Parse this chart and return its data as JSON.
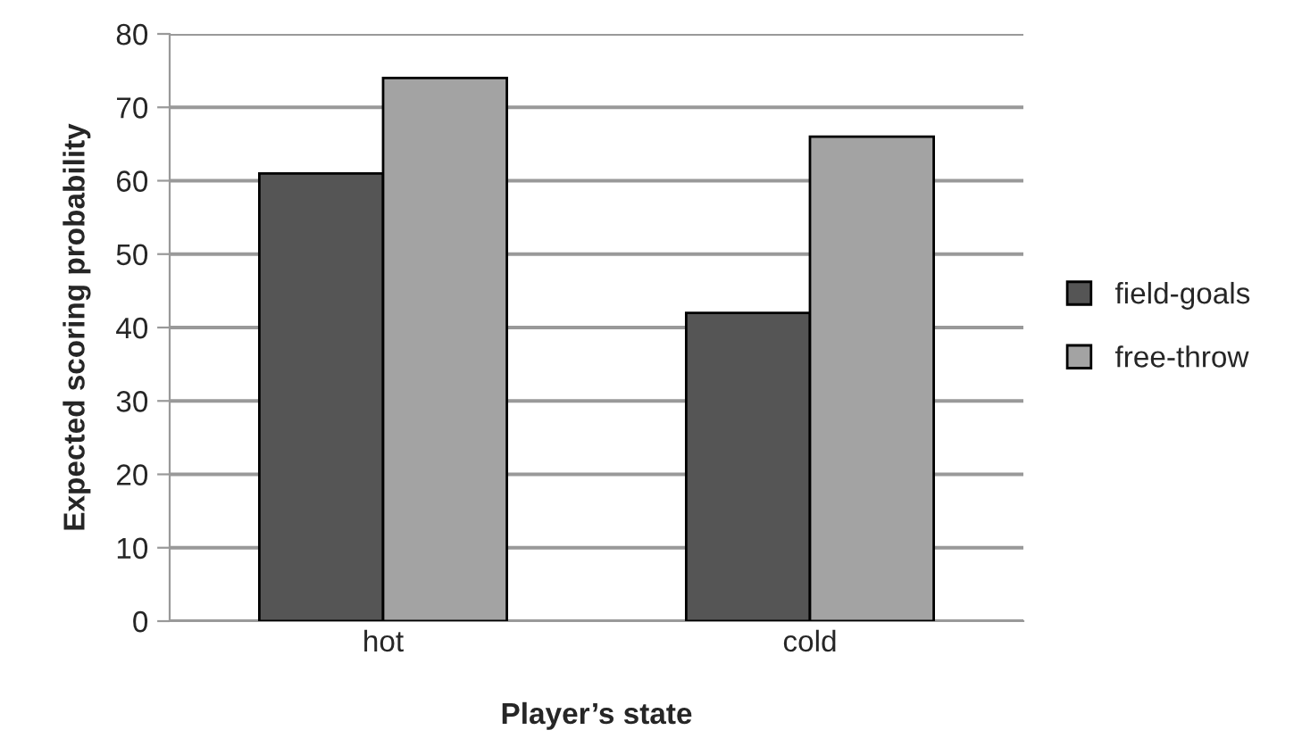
{
  "chart_data": {
    "type": "bar",
    "xlabel": "Player’s state",
    "ylabel": "Expected scoring probability",
    "categories": [
      "hot",
      "cold"
    ],
    "series": [
      {
        "name": "field-goals",
        "color": "#555555",
        "values": [
          61,
          42
        ]
      },
      {
        "name": "free-throw",
        "color": "#a3a3a3",
        "values": [
          74,
          66
        ]
      }
    ],
    "ylim": [
      0,
      80
    ],
    "yticks": [
      0,
      10,
      20,
      30,
      40,
      50,
      60,
      70,
      80
    ],
    "grid": "y",
    "legend": "right"
  }
}
